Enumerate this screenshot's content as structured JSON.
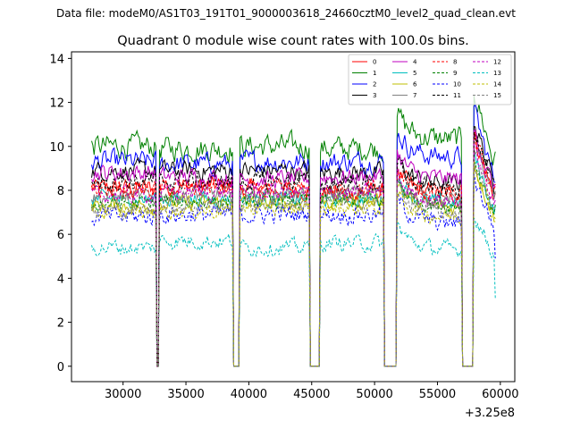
{
  "suptitle": "Data file: modeM0/AS1T03_191T01_9000003618_24660cztM0_level2_quad_clean.evt",
  "chart_data": {
    "type": "line",
    "title": "Quadrant 0 module wise count rates with 100.0s bins.",
    "xlabel": "",
    "ylabel": "",
    "x_offset_label": "+3.25e8",
    "x_offset": 325000000,
    "xlim": [
      25900,
      61150
    ],
    "ylim": [
      -0.7,
      14.3
    ],
    "xticks": [
      30000,
      35000,
      40000,
      45000,
      50000,
      55000,
      60000
    ],
    "xtick_labels": [
      "30000",
      "35000",
      "40000",
      "45000",
      "50000",
      "55000",
      "60000"
    ],
    "yticks": [
      0,
      2,
      4,
      6,
      8,
      10,
      12,
      14
    ],
    "ytick_labels": [
      "0",
      "2",
      "4",
      "6",
      "8",
      "10",
      "12",
      "14"
    ],
    "grid": false,
    "legend_position": "top-right",
    "legend_columns": 4,
    "bin_seconds": 100,
    "segments": [
      {
        "start": 27500,
        "end": 32600
      },
      {
        "start": 32900,
        "end": 38700
      },
      {
        "start": 39300,
        "end": 44800
      },
      {
        "start": 45700,
        "end": 50700
      },
      {
        "start": 51800,
        "end": 56900
      },
      {
        "start": 57900,
        "end": 59600
      }
    ],
    "gaps_zero": [
      [
        32700,
        32800
      ],
      [
        38800,
        39200
      ],
      [
        44900,
        45600
      ],
      [
        50800,
        51700
      ],
      [
        57000,
        57800
      ]
    ],
    "series": [
      {
        "name": "0",
        "color": "#ff0000",
        "dashed": false,
        "levels": [
          8.1,
          8.2,
          8.0,
          7.9,
          8.1,
          10.5
        ],
        "spread": 0.35
      },
      {
        "name": "1",
        "color": "#008000",
        "dashed": false,
        "levels": [
          10.0,
          9.9,
          10.0,
          9.9,
          10.6,
          12.6
        ],
        "spread": 0.45
      },
      {
        "name": "2",
        "color": "#0000ff",
        "dashed": false,
        "levels": [
          9.3,
          9.2,
          9.3,
          9.3,
          9.8,
          11.6
        ],
        "spread": 0.4
      },
      {
        "name": "3",
        "color": "#000000",
        "dashed": false,
        "levels": [
          8.9,
          8.9,
          8.9,
          8.8,
          8.6,
          11.2
        ],
        "spread": 0.35
      },
      {
        "name": "4",
        "color": "#bf00bf",
        "dashed": false,
        "levels": [
          8.8,
          8.6,
          8.5,
          8.6,
          8.8,
          10.8
        ],
        "spread": 0.35
      },
      {
        "name": "5",
        "color": "#00bfbf",
        "dashed": false,
        "levels": [
          7.6,
          7.6,
          7.6,
          7.6,
          7.7,
          9.6
        ],
        "spread": 0.3
      },
      {
        "name": "6",
        "color": "#bfbf00",
        "dashed": false,
        "levels": [
          7.3,
          7.4,
          7.4,
          7.5,
          7.5,
          9.2
        ],
        "spread": 0.3
      },
      {
        "name": "7",
        "color": "#808080",
        "dashed": false,
        "levels": [
          7.7,
          7.8,
          7.8,
          7.9,
          7.8,
          10.2
        ],
        "spread": 0.3
      },
      {
        "name": "8",
        "color": "#ff0000",
        "dashed": true,
        "levels": [
          8.0,
          8.1,
          8.0,
          8.0,
          8.1,
          10.4
        ],
        "spread": 0.35
      },
      {
        "name": "9",
        "color": "#008000",
        "dashed": true,
        "levels": [
          7.4,
          7.5,
          7.5,
          7.5,
          7.6,
          9.4
        ],
        "spread": 0.3
      },
      {
        "name": "10",
        "color": "#0000ff",
        "dashed": true,
        "levels": [
          6.8,
          6.9,
          6.9,
          6.9,
          6.8,
          8.6
        ],
        "spread": 0.35
      },
      {
        "name": "11",
        "color": "#000000",
        "dashed": true,
        "levels": [
          8.4,
          8.4,
          8.4,
          8.3,
          8.3,
          10.9
        ],
        "spread": 0.35
      },
      {
        "name": "12",
        "color": "#bf00bf",
        "dashed": true,
        "levels": [
          7.8,
          7.9,
          7.9,
          7.9,
          7.8,
          9.9
        ],
        "spread": 0.3
      },
      {
        "name": "13",
        "color": "#00bfbf",
        "dashed": true,
        "levels": [
          5.4,
          5.7,
          5.4,
          5.6,
          5.6,
          6.9
        ],
        "spread": 0.3
      },
      {
        "name": "14",
        "color": "#bfbf00",
        "dashed": true,
        "levels": [
          7.0,
          7.1,
          7.2,
          7.2,
          7.1,
          9.3
        ],
        "spread": 0.3
      },
      {
        "name": "15",
        "color": "#808080",
        "dashed": true,
        "levels": [
          7.1,
          7.3,
          7.4,
          7.5,
          7.3,
          9.4
        ],
        "spread": 0.3
      }
    ]
  }
}
